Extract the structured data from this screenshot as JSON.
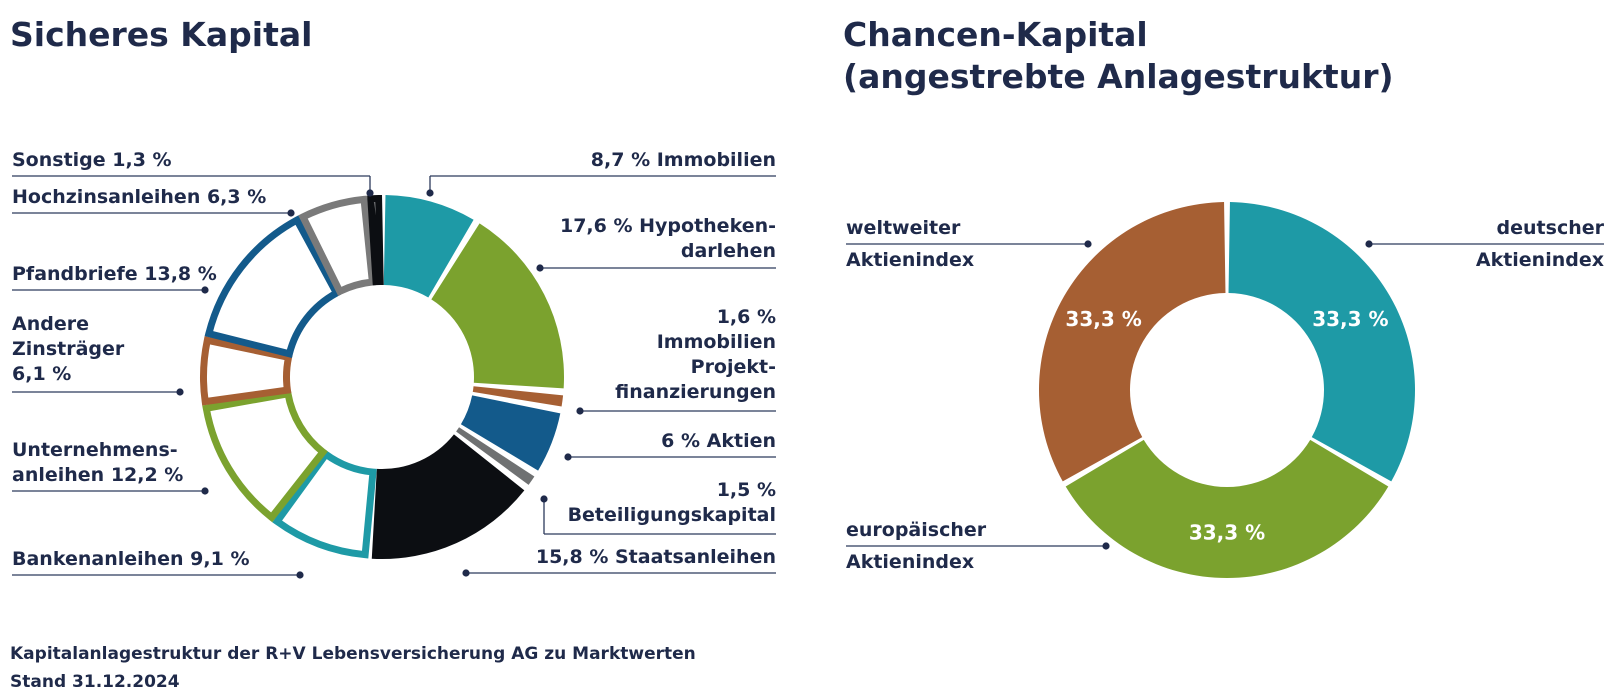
{
  "left_title": "Sicheres Kapital",
  "right_title": [
    "Chancen-Kapital",
    "(angestrebte Anlagestruktur)"
  ],
  "footnote": [
    "Kapitalanlagestruktur der R+V Lebensversicherung AG zu Marktwerten",
    "Stand 31.12.2024"
  ],
  "chart_data": [
    {
      "type": "pie",
      "title": "Sicheres Kapital",
      "categories": [
        "Immobilien",
        "Hypothekendarlehen",
        "Immobilien Projektfinanzierungen",
        "Aktien",
        "Beteiligungskapital",
        "Staatsanleihen",
        "Bankenanleihen",
        "Unternehmensanleihen",
        "Andere Zinsträger",
        "Pfandbriefe",
        "Hochzinsanleihen",
        "Sonstige"
      ],
      "values": [
        8.7,
        17.6,
        1.6,
        6.0,
        1.5,
        15.8,
        9.1,
        12.2,
        6.1,
        13.8,
        6.3,
        1.3
      ],
      "colors": [
        "#1e9aa6",
        "#7ba22e",
        "#a65f33",
        "#135a8b",
        "#6f7172",
        "#0c0e12",
        "#1e9aa6",
        "#7ba22e",
        "#a65f33",
        "#135a8b",
        "#7a7a7a",
        "#0c0e12"
      ],
      "styles": [
        "filled",
        "filled",
        "filled",
        "filled",
        "filled",
        "filled",
        "outline",
        "outline",
        "outline",
        "outline",
        "outline",
        "outline"
      ],
      "labels": [
        [
          "8,7 % Immobilien"
        ],
        [
          "17,6 % Hypotheken-",
          "darlehen"
        ],
        [
          "1,6 %",
          "Immobilien",
          "Projekt-",
          "finanzierungen"
        ],
        [
          "6 % Aktien"
        ],
        [
          "1,5 %",
          "Beteiligungskapital"
        ],
        [
          "15,8 % Staatsanleihen"
        ],
        [
          "Bankenanleihen 9,1 %"
        ],
        [
          "Unternehmens-",
          "anleihen 12,2 %"
        ],
        [
          "Andere",
          "Zinsträger",
          "6,1 %"
        ],
        [
          "Pfandbriefe 13,8 %"
        ],
        [
          "Hochzinsanleihen 6,3 %"
        ],
        [
          "Sonstige 1,3 %"
        ]
      ]
    },
    {
      "type": "pie",
      "title": "Chancen-Kapital (angestrebte Anlagestruktur)",
      "categories": [
        "deutscher Aktienindex",
        "europäischer Aktienindex",
        "weltweiter Aktienindex"
      ],
      "values": [
        33.3,
        33.3,
        33.3
      ],
      "value_labels": [
        "33,3 %",
        "33,3 %",
        "33,3 %"
      ],
      "colors": [
        "#1e9aa6",
        "#7ba22e",
        "#a65f33"
      ],
      "labels": [
        [
          "deutscher",
          "Aktienindex"
        ],
        [
          "europäischer",
          "Aktienindex"
        ],
        [
          "weltweiter",
          "Aktienindex"
        ]
      ]
    }
  ]
}
